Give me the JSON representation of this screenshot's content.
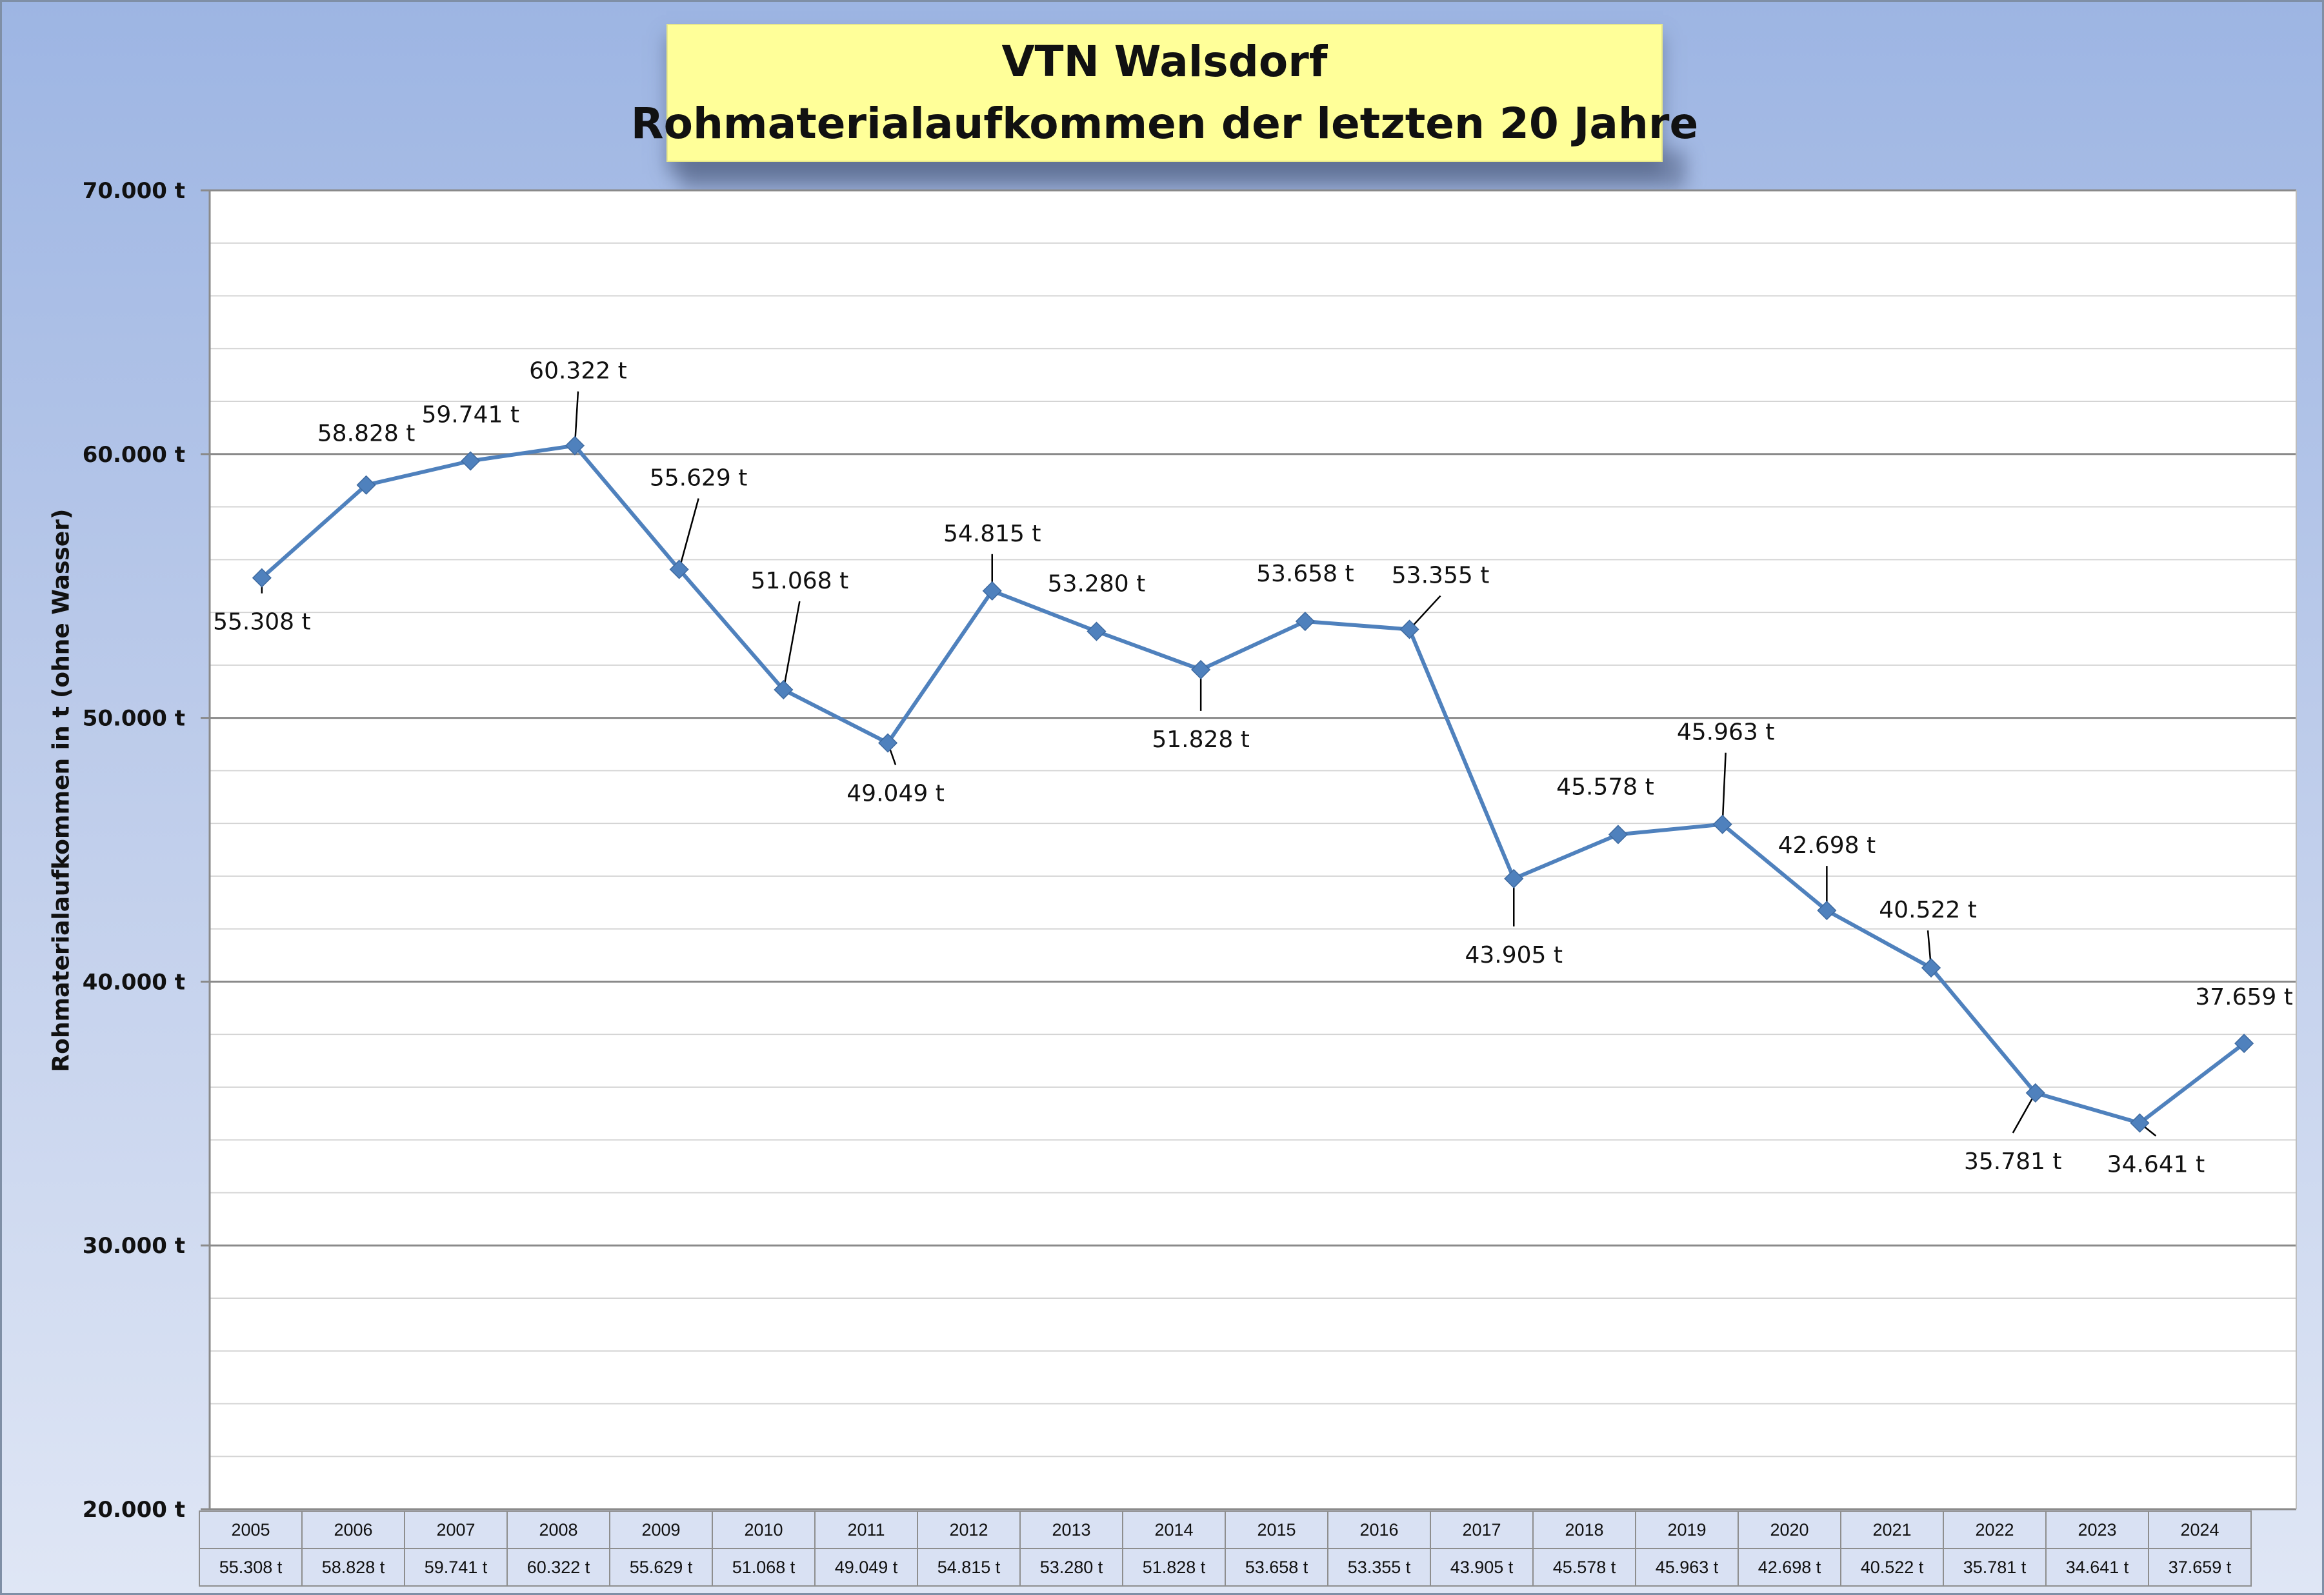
{
  "chart_data": {
    "type": "line",
    "title": [
      "VTN Walsdorf",
      "Rohmaterialaufkommen der letzten 20 Jahre"
    ],
    "xlabel": "",
    "ylabel": "Rohmaterialaufkommen in t (ohne Wasser)",
    "ylim": [
      20000,
      70000
    ],
    "yticks": [
      "20.000 t",
      "30.000 t",
      "40.000 t",
      "50.000 t",
      "60.000 t",
      "70.000 t"
    ],
    "ytick_values": [
      20000,
      30000,
      40000,
      50000,
      60000,
      70000
    ],
    "categories": [
      "2005",
      "2006",
      "2007",
      "2008",
      "2009",
      "2010",
      "2011",
      "2012",
      "2013",
      "2014",
      "2015",
      "2016",
      "2017",
      "2018",
      "2019",
      "2020",
      "2021",
      "2022",
      "2023",
      "2024"
    ],
    "series": [
      {
        "name": "",
        "color": "#4f81bd",
        "marker": "diamond",
        "values": [
          55308,
          58828,
          59741,
          60322,
          55629,
          51068,
          49049,
          54815,
          53280,
          51828,
          53658,
          53355,
          43905,
          45578,
          45963,
          42698,
          40522,
          35781,
          34641,
          37659
        ],
        "labels": [
          "55.308 t",
          "58.828 t",
          "59.741 t",
          "60.322 t",
          "55.629 t",
          "51.068 t",
          "49.049 t",
          "54.815 t",
          "53.280 t",
          "51.828 t",
          "53.658 t",
          "53.355 t",
          "43.905 t",
          "45.578 t",
          "45.963 t",
          "42.698 t",
          "40.522 t",
          "35.781 t",
          "34.641 t",
          "37.659 t"
        ]
      }
    ],
    "grid": "horizontal major and minor",
    "legend": "none",
    "data_table": true
  }
}
